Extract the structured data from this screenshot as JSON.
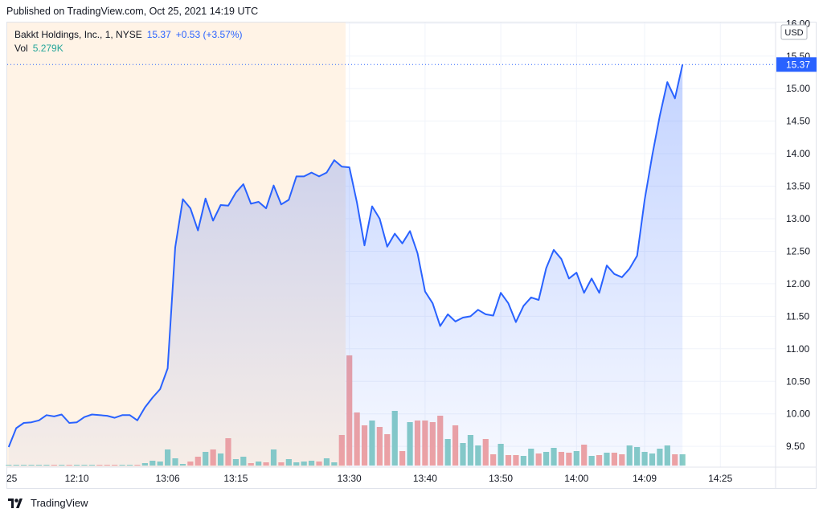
{
  "header": {
    "published": "Published on TradingView.com, Oct 25, 2021 14:19 UTC"
  },
  "legend": {
    "symbol": "Bakkt Holdings, Inc., 1, NYSE",
    "last": "15.37",
    "change": "+0.53 (+3.57%)",
    "vol_label": "Vol",
    "vol_value": "5.279K"
  },
  "footer": {
    "brand": "TradingView"
  },
  "colors": {
    "line": "#2962ff",
    "premarket_bg": "#fff3e6",
    "vol_up": "#88cdc6",
    "vol_down": "#f4a4a1",
    "price_badge": "#2962ff"
  },
  "chart_data": {
    "type": "area",
    "currency": "USD",
    "last_price_label": "15.37",
    "y_ticks": [
      "16.00",
      "15.50",
      "15.00",
      "14.50",
      "14.00",
      "13.50",
      "13.00",
      "12.50",
      "12.00",
      "11.50",
      "11.00",
      "10.50",
      "10.00",
      "9.50"
    ],
    "ylim": [
      9.25,
      16.05
    ],
    "x_ticks": [
      {
        "index": 0,
        "label": "25"
      },
      {
        "index": 9,
        "label": "12:10"
      },
      {
        "index": 21,
        "label": "13:06"
      },
      {
        "index": 30,
        "label": "13:15"
      },
      {
        "index": 45,
        "label": "13:30"
      },
      {
        "index": 55,
        "label": "13:40"
      },
      {
        "index": 65,
        "label": "13:50"
      },
      {
        "index": 75,
        "label": "14:00"
      },
      {
        "index": 84,
        "label": "14:09"
      },
      {
        "index": 94,
        "label": "14:25"
      }
    ],
    "premarket_end_index": 44.5,
    "price": [
      9.49,
      9.78,
      9.86,
      9.87,
      9.9,
      9.98,
      9.96,
      9.99,
      9.86,
      9.87,
      9.95,
      9.99,
      9.98,
      9.97,
      9.94,
      9.98,
      9.98,
      9.9,
      10.1,
      10.25,
      10.38,
      10.7,
      12.56,
      13.3,
      13.16,
      12.82,
      13.31,
      12.97,
      13.21,
      13.2,
      13.4,
      13.53,
      13.23,
      13.26,
      13.16,
      13.51,
      13.22,
      13.29,
      13.65,
      13.65,
      13.71,
      13.65,
      13.71,
      13.9,
      13.8,
      13.79,
      13.25,
      12.59,
      13.19,
      13.0,
      12.57,
      12.77,
      12.62,
      12.81,
      12.47,
      11.88,
      11.7,
      11.35,
      11.53,
      11.42,
      11.48,
      11.5,
      11.6,
      11.53,
      11.51,
      11.86,
      11.7,
      11.41,
      11.66,
      11.79,
      11.75,
      12.24,
      12.52,
      12.38,
      12.08,
      12.17,
      11.86,
      12.08,
      11.86,
      12.28,
      12.15,
      12.1,
      12.23,
      12.43,
      13.29,
      13.97,
      14.58,
      15.1,
      14.85,
      15.37
    ],
    "volume": [
      1,
      1,
      1,
      1,
      1,
      1,
      1,
      1,
      1,
      1,
      1,
      1,
      1,
      1,
      1,
      1,
      1,
      1,
      3,
      6,
      5,
      20,
      9,
      2,
      5,
      11,
      17,
      20,
      15,
      34,
      8,
      11,
      3,
      5,
      4,
      20,
      4,
      8,
      4,
      5,
      6,
      5,
      9,
      4,
      38,
      137,
      66,
      50,
      56,
      48,
      39,
      68,
      18,
      54,
      56,
      56,
      54,
      62,
      33,
      50,
      28,
      38,
      25,
      33,
      14,
      27,
      13,
      13,
      12,
      21,
      15,
      17,
      22,
      17,
      16,
      18,
      26,
      12,
      13,
      16,
      16,
      14,
      25,
      23,
      17,
      15,
      21,
      25,
      14,
      14
    ]
  }
}
